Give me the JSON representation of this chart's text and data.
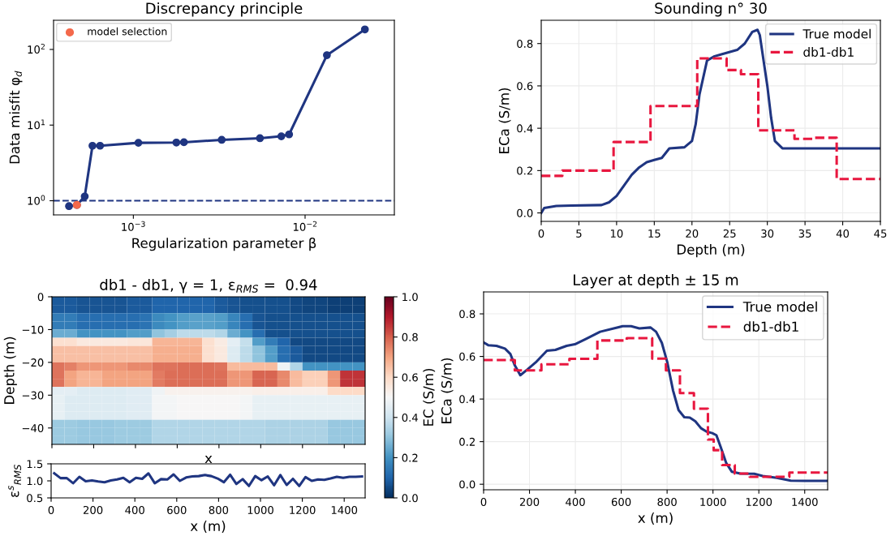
{
  "chart_data": [
    {
      "type": "line",
      "title": "Discrepancy principle",
      "xlabel": "Regularization parameter β",
      "ylabel": "Data misfit φ$_{d}$",
      "log": "xy",
      "xlim": [
        0.000343,
        0.0331
      ],
      "ylim": [
        0.65,
        243
      ],
      "xticks": [
        {
          "value": 0.001,
          "label": "10$^{−3}$"
        },
        {
          "value": 0.01,
          "label": "10$^{−2}$"
        }
      ],
      "yticks": [
        {
          "value": 1,
          "label": "10$^{0}$"
        },
        {
          "value": 10,
          "label": "10$^{1}$"
        },
        {
          "value": 100,
          "label": "10$^{2}$"
        }
      ],
      "legend": "top left",
      "grid": false,
      "series": [
        {
          "type": "line",
          "color": "#1f3581",
          "marker": "circle",
          "x": [
            0.000422,
            0.000469,
            0.000521,
            0.000578,
            0.00064,
            0.00107,
            0.00178,
            0.00197,
            0.00327,
            0.00546,
            0.00727,
            0.00807,
            0.0134,
            0.0223
          ],
          "values": [
            0.848,
            0.88,
            1.14,
            5.33,
            5.33,
            5.83,
            5.88,
            5.93,
            6.38,
            6.7,
            7.11,
            7.53,
            84,
            184
          ]
        },
        {
          "type": "scatter",
          "name": "model selection",
          "color": "#f4694b",
          "marker": "circle",
          "x": [
            0.000469
          ],
          "values": [
            0.88
          ]
        }
      ],
      "ref_lines": [
        {
          "axis": "y",
          "value": 1,
          "label": null,
          "color": "#1f3581",
          "line_style": "dashed"
        }
      ]
    },
    {
      "type": "line",
      "title": "Sounding n° 30",
      "xlabel": "Depth (m)",
      "ylabel": "ECa (S/m)",
      "xlim": [
        0,
        45
      ],
      "ylim": [
        -0.04,
        0.91
      ],
      "xticks": [
        0,
        5,
        10,
        15,
        20,
        25,
        30,
        35,
        40,
        45
      ],
      "yticks": [
        {
          "value": 0,
          "label": "0.0"
        },
        {
          "value": 0.2,
          "label": "0.2"
        },
        {
          "value": 0.4,
          "label": "0.4"
        },
        {
          "value": 0.6,
          "label": "0.6"
        },
        {
          "value": 0.8,
          "label": "0.8"
        }
      ],
      "grid": true,
      "legend": "top right",
      "series": [
        {
          "type": "line",
          "name": "True model",
          "color": "#1f3581",
          "line_style": "solid",
          "x": [
            0,
            0.4,
            2,
            4,
            8,
            9,
            10,
            11,
            12,
            13,
            14,
            15,
            16,
            17,
            19,
            20,
            20.5,
            21,
            22,
            23,
            24,
            26,
            27,
            28,
            28.7,
            29,
            30,
            30.5,
            31,
            32,
            45
          ],
          "values": [
            0.0,
            0.023,
            0.033,
            0.035,
            0.037,
            0.05,
            0.08,
            0.13,
            0.18,
            0.215,
            0.24,
            0.25,
            0.26,
            0.305,
            0.31,
            0.34,
            0.42,
            0.56,
            0.72,
            0.74,
            0.75,
            0.77,
            0.8,
            0.855,
            0.865,
            0.84,
            0.6,
            0.45,
            0.34,
            0.305,
            0.305
          ]
        },
        {
          "type": "step",
          "name": "db1-db1",
          "color": "#e8173f",
          "line_style": "dashed",
          "x": [
            0,
            2.8,
            9.6,
            14.5,
            20.7,
            24.6,
            26.5,
            28.8,
            33.6,
            36,
            39.2,
            45
          ],
          "values": [
            0.175,
            0.2,
            0.335,
            0.505,
            0.73,
            0.675,
            0.655,
            0.39,
            0.35,
            0.355,
            0.16,
            0.16
          ]
        }
      ]
    },
    {
      "type": "heatmap",
      "title": "db1 - db1, γ = 1, ε$_{RMS}$ =  0.94",
      "xlabel": "x",
      "ylabel": "Depth (m)",
      "clabel": "EC (S/m)",
      "cells": [
        [
          0.08,
          0.08,
          0.07,
          0.07,
          0.07,
          0.07,
          0.08,
          0.08,
          0.1,
          0.1,
          0.1,
          0.1,
          0.1,
          0.08,
          0.07,
          0.06,
          0.06,
          0.06,
          0.06,
          0.05,
          0.04,
          0.04,
          0.03,
          0.03,
          0.03
        ],
        [
          0.08,
          0.08,
          0.07,
          0.07,
          0.07,
          0.07,
          0.08,
          0.08,
          0.1,
          0.1,
          0.1,
          0.1,
          0.1,
          0.08,
          0.07,
          0.06,
          0.06,
          0.06,
          0.06,
          0.05,
          0.04,
          0.04,
          0.03,
          0.03,
          0.03
        ],
        [
          0.15,
          0.15,
          0.12,
          0.12,
          0.12,
          0.12,
          0.12,
          0.13,
          0.18,
          0.2,
          0.22,
          0.23,
          0.23,
          0.22,
          0.17,
          0.12,
          0.07,
          0.06,
          0.06,
          0.06,
          0.06,
          0.06,
          0.06,
          0.06,
          0.06
        ],
        [
          0.15,
          0.15,
          0.12,
          0.12,
          0.12,
          0.12,
          0.12,
          0.13,
          0.18,
          0.2,
          0.22,
          0.23,
          0.23,
          0.22,
          0.17,
          0.12,
          0.07,
          0.06,
          0.06,
          0.06,
          0.06,
          0.06,
          0.06,
          0.06,
          0.06
        ],
        [
          0.25,
          0.25,
          0.2,
          0.2,
          0.2,
          0.2,
          0.22,
          0.22,
          0.3,
          0.33,
          0.37,
          0.37,
          0.37,
          0.35,
          0.25,
          0.2,
          0.12,
          0.06,
          0.06,
          0.06,
          0.06,
          0.06,
          0.06,
          0.06,
          0.06
        ],
        [
          0.58,
          0.58,
          0.55,
          0.55,
          0.55,
          0.55,
          0.56,
          0.56,
          0.67,
          0.67,
          0.67,
          0.67,
          0.58,
          0.54,
          0.45,
          0.38,
          0.22,
          0.15,
          0.1,
          0.05,
          0.05,
          0.05,
          0.05,
          0.05,
          0.05
        ],
        [
          0.65,
          0.65,
          0.65,
          0.65,
          0.65,
          0.65,
          0.65,
          0.65,
          0.68,
          0.68,
          0.68,
          0.68,
          0.58,
          0.55,
          0.43,
          0.37,
          0.3,
          0.22,
          0.12,
          0.08,
          0.05,
          0.05,
          0.05,
          0.05,
          0.05
        ],
        [
          0.65,
          0.65,
          0.65,
          0.65,
          0.65,
          0.65,
          0.65,
          0.65,
          0.68,
          0.68,
          0.68,
          0.68,
          0.58,
          0.55,
          0.43,
          0.37,
          0.3,
          0.22,
          0.12,
          0.08,
          0.05,
          0.05,
          0.05,
          0.05,
          0.05
        ],
        [
          0.77,
          0.75,
          0.72,
          0.72,
          0.72,
          0.72,
          0.74,
          0.74,
          0.77,
          0.77,
          0.78,
          0.78,
          0.78,
          0.77,
          0.66,
          0.66,
          0.66,
          0.66,
          0.48,
          0.35,
          0.2,
          0.2,
          0.2,
          0.2,
          0.2
        ],
        [
          0.77,
          0.7,
          0.67,
          0.67,
          0.7,
          0.7,
          0.7,
          0.7,
          0.76,
          0.78,
          0.78,
          0.78,
          0.78,
          0.78,
          0.72,
          0.72,
          0.79,
          0.79,
          0.74,
          0.66,
          0.62,
          0.62,
          0.72,
          0.86,
          0.86
        ],
        [
          0.77,
          0.7,
          0.67,
          0.67,
          0.7,
          0.7,
          0.7,
          0.7,
          0.76,
          0.78,
          0.78,
          0.78,
          0.78,
          0.78,
          0.72,
          0.72,
          0.79,
          0.79,
          0.74,
          0.66,
          0.62,
          0.62,
          0.72,
          0.86,
          0.86
        ],
        [
          0.45,
          0.45,
          0.43,
          0.43,
          0.43,
          0.43,
          0.44,
          0.44,
          0.48,
          0.52,
          0.52,
          0.52,
          0.52,
          0.52,
          0.52,
          0.52,
          0.53,
          0.53,
          0.53,
          0.53,
          0.53,
          0.53,
          0.6,
          0.6,
          0.6
        ],
        [
          0.46,
          0.43,
          0.43,
          0.43,
          0.43,
          0.43,
          0.44,
          0.44,
          0.49,
          0.49,
          0.5,
          0.5,
          0.5,
          0.5,
          0.5,
          0.49,
          0.46,
          0.46,
          0.46,
          0.46,
          0.46,
          0.46,
          0.46,
          0.46,
          0.46
        ],
        [
          0.46,
          0.43,
          0.43,
          0.43,
          0.43,
          0.43,
          0.44,
          0.44,
          0.49,
          0.49,
          0.5,
          0.5,
          0.5,
          0.5,
          0.5,
          0.49,
          0.46,
          0.46,
          0.46,
          0.46,
          0.46,
          0.46,
          0.46,
          0.46,
          0.46
        ],
        [
          0.46,
          0.43,
          0.43,
          0.43,
          0.43,
          0.43,
          0.44,
          0.44,
          0.49,
          0.49,
          0.5,
          0.5,
          0.5,
          0.5,
          0.5,
          0.49,
          0.46,
          0.46,
          0.46,
          0.46,
          0.46,
          0.46,
          0.46,
          0.46,
          0.46
        ],
        [
          0.32,
          0.32,
          0.31,
          0.31,
          0.31,
          0.32,
          0.32,
          0.32,
          0.35,
          0.35,
          0.35,
          0.35,
          0.35,
          0.35,
          0.35,
          0.35,
          0.35,
          0.34,
          0.34,
          0.34,
          0.34,
          0.34,
          0.31,
          0.31,
          0.31
        ],
        [
          0.32,
          0.32,
          0.31,
          0.31,
          0.31,
          0.32,
          0.32,
          0.32,
          0.35,
          0.35,
          0.35,
          0.35,
          0.35,
          0.35,
          0.35,
          0.35,
          0.35,
          0.34,
          0.34,
          0.34,
          0.34,
          0.34,
          0.31,
          0.31,
          0.31
        ],
        [
          0.32,
          0.32,
          0.31,
          0.31,
          0.31,
          0.32,
          0.32,
          0.32,
          0.35,
          0.35,
          0.35,
          0.35,
          0.35,
          0.35,
          0.35,
          0.35,
          0.35,
          0.34,
          0.34,
          0.34,
          0.34,
          0.34,
          0.31,
          0.31,
          0.31
        ]
      ],
      "clim": [
        0,
        1
      ],
      "cticks": [
        {
          "value": 0,
          "label": "0.0"
        },
        {
          "value": 0.2,
          "label": "0.2"
        },
        {
          "value": 0.4,
          "label": "0.4"
        },
        {
          "value": 0.6,
          "label": "0.6"
        },
        {
          "value": 0.8,
          "label": "0.8"
        },
        {
          "value": 1,
          "label": "1.0"
        }
      ],
      "xlim": [
        0,
        1500
      ],
      "ylim": [
        -45,
        0
      ],
      "xticks": [
        {
          "value": 0,
          "label": null
        },
        {
          "value": 200,
          "label": null
        },
        {
          "value": 400,
          "label": null
        },
        {
          "value": 600,
          "label": null
        },
        {
          "value": 800,
          "label": null
        },
        {
          "value": 1000,
          "label": null
        },
        {
          "value": 1200,
          "label": null
        },
        {
          "value": 1400,
          "label": null
        }
      ],
      "yticks": [
        {
          "value": 0,
          "label": "0"
        },
        {
          "value": -10,
          "label": "−10"
        },
        {
          "value": -20,
          "label": "−20"
        },
        {
          "value": -30,
          "label": "−30"
        },
        {
          "value": -40,
          "label": "−40"
        }
      ],
      "tick_labels": "y"
    },
    {
      "type": "line",
      "xlabel": "x (m)",
      "ylabel": "ε$^{s}$$_{RMS}$",
      "xlim": [
        0,
        1500
      ],
      "ylim": [
        0.5,
        1.5
      ],
      "xticks": [
        0,
        200,
        400,
        600,
        800,
        1000,
        1200,
        1400
      ],
      "yticks": [
        {
          "value": 0.5,
          "label": "0.5"
        },
        {
          "value": 1.0,
          "label": "1.0"
        },
        {
          "value": 1.5,
          "label": "1.5"
        }
      ],
      "series": [
        {
          "color": "#1f3581",
          "x": [
            15,
            45,
            75,
            105,
            135,
            165,
            195,
            225,
            255,
            285,
            315,
            345,
            375,
            405,
            435,
            465,
            495,
            525,
            555,
            585,
            615,
            645,
            675,
            705,
            735,
            765,
            795,
            825,
            855,
            885,
            915,
            945,
            975,
            1005,
            1035,
            1065,
            1095,
            1125,
            1155,
            1185,
            1215,
            1245,
            1275,
            1305,
            1335,
            1365,
            1395,
            1425,
            1455,
            1485
          ],
          "values": [
            1.22,
            1.08,
            1.08,
            0.93,
            1.12,
            0.99,
            1.01,
            0.98,
            0.96,
            1.01,
            1.04,
            1.09,
            0.96,
            1.09,
            1.06,
            1.22,
            0.93,
            1.05,
            1.04,
            1.19,
            1.0,
            1.1,
            1.13,
            1.14,
            1.17,
            1.14,
            1.07,
            0.96,
            1.18,
            0.91,
            1.05,
            0.85,
            1.14,
            1.02,
            1.13,
            0.87,
            1.17,
            0.88,
            1.06,
            0.85,
            1.11,
            1.0,
            1.04,
            1.03,
            1.07,
            1.12,
            1.09,
            1.12,
            1.12,
            1.13
          ]
        }
      ]
    },
    {
      "type": "line",
      "title": "Layer at depth ± 15 m",
      "xlabel": "x (m)",
      "ylabel": "ECa (S/m)",
      "xlim": [
        0,
        1500
      ],
      "ylim": [
        -0.026,
        0.903
      ],
      "xticks": [
        0,
        200,
        400,
        600,
        800,
        1000,
        1200,
        1400
      ],
      "yticks": [
        {
          "value": 0,
          "label": "0.0"
        },
        {
          "value": 0.2,
          "label": "0.2"
        },
        {
          "value": 0.4,
          "label": "0.4"
        },
        {
          "value": 0.6,
          "label": "0.6"
        },
        {
          "value": 0.8,
          "label": "0.8"
        }
      ],
      "grid": true,
      "legend": "top right",
      "series": [
        {
          "type": "line",
          "name": "True model",
          "color": "#1f3581",
          "line_style": "solid",
          "x": [
            0,
            20,
            56,
            93,
            117,
            136,
            160,
            191,
            227,
            276,
            313,
            362,
            398,
            447,
            508,
            606,
            643,
            679,
            728,
            752,
            777,
            801,
            826,
            850,
            875,
            899,
            923,
            948,
            972,
            997,
            1015,
            1033,
            1058,
            1082,
            1119,
            1180,
            1217,
            1278,
            1339,
            1400,
            1500
          ],
          "values": [
            0.666,
            0.653,
            0.65,
            0.637,
            0.611,
            0.558,
            0.512,
            0.539,
            0.572,
            0.627,
            0.631,
            0.65,
            0.657,
            0.683,
            0.716,
            0.742,
            0.742,
            0.732,
            0.736,
            0.716,
            0.664,
            0.572,
            0.44,
            0.348,
            0.315,
            0.313,
            0.296,
            0.263,
            0.247,
            0.24,
            0.23,
            0.177,
            0.099,
            0.059,
            0.05,
            0.049,
            0.039,
            0.03,
            0.017,
            0.016,
            0.016
          ]
        },
        {
          "type": "step",
          "name": "db1-db1",
          "color": "#e8173f",
          "line_style": "dashed",
          "x": [
            0,
            136,
            252,
            374,
            496,
            624,
            735,
            795,
            856,
            917,
            978,
            1003,
            1040,
            1095,
            1160,
            1333,
            1500
          ],
          "values": [
            0.583,
            0.535,
            0.563,
            0.589,
            0.675,
            0.686,
            0.59,
            0.535,
            0.428,
            0.355,
            0.21,
            0.16,
            0.09,
            0.05,
            0.035,
            0.055,
            0.055
          ]
        }
      ]
    }
  ]
}
